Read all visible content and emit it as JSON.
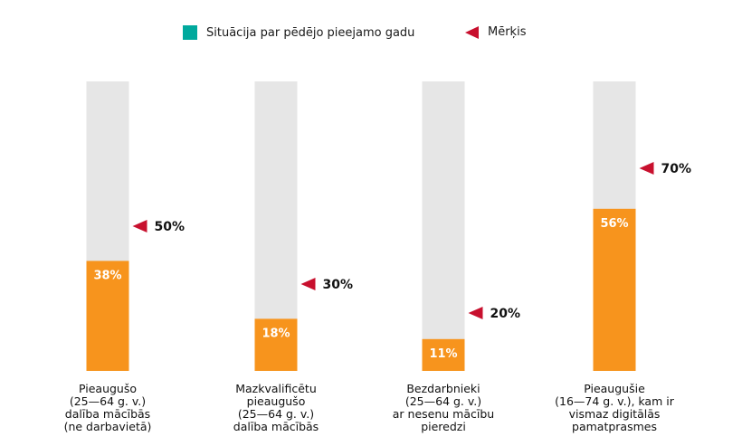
{
  "legend": {
    "current_label": "Situācija par pēdējo pieejamo gadu",
    "target_label": "Mērķis",
    "current_color": "#00a99d",
    "target_color": "#c8102e"
  },
  "chart_data": {
    "type": "bar",
    "ylim": [
      0,
      100
    ],
    "bar_color": "#f7941d",
    "track_color": "#e6e6e6",
    "categories": [
      {
        "lines": [
          "Pieaugušo",
          "(25—64 g. v.)",
          "dalība mācībās",
          "(ne darbavietā)"
        ],
        "value": 38,
        "value_label": "38%",
        "target": 50,
        "target_label": "50%"
      },
      {
        "lines": [
          "Mazkvalificētu",
          "pieaugušo",
          "(25—64 g. v.)",
          "dalība mācībās"
        ],
        "value": 18,
        "value_label": "18%",
        "target": 30,
        "target_label": "30%"
      },
      {
        "lines": [
          "Bezdarbnieki",
          "(25—64 g. v.)",
          "ar nesenu mācību",
          "pieredzi"
        ],
        "value": 11,
        "value_label": "11%",
        "target": 20,
        "target_label": "20%"
      },
      {
        "lines": [
          "Pieaugušie",
          "(16—74 g. v.), kam ir",
          "vismaz digitālās",
          "pamatprasmes"
        ],
        "value": 56,
        "value_label": "56%",
        "target": 70,
        "target_label": "70%"
      }
    ]
  }
}
